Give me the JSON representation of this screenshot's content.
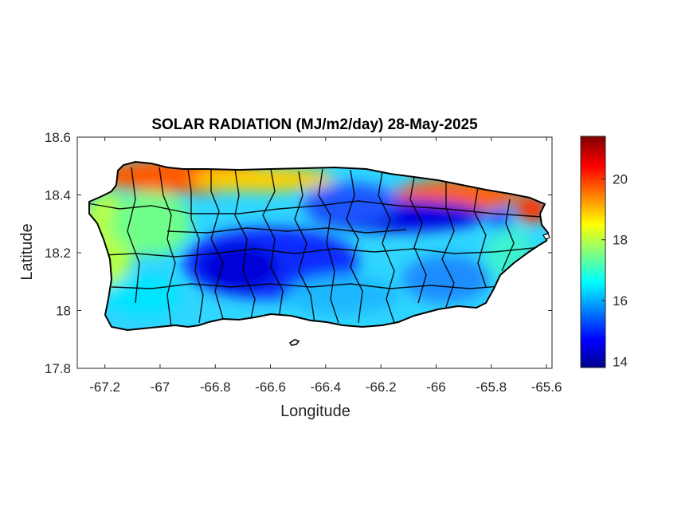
{
  "chart_data": {
    "type": "heatmap",
    "title": "SOLAR RADIATION (MJ/m2/day) 28-May-2025",
    "xlabel": "Longitude",
    "ylabel": "Latitude",
    "xlim": [
      -67.3,
      -65.58
    ],
    "ylim": [
      17.8,
      18.6
    ],
    "x_ticks": [
      -67.2,
      -67,
      -66.8,
      -66.6,
      -66.4,
      -66.2,
      -66,
      -65.8,
      -65.6
    ],
    "x_tick_labels": [
      "-67.2",
      "-67",
      "-66.8",
      "-66.6",
      "-66.4",
      "-66.2",
      "-66",
      "-65.8",
      "-65.6"
    ],
    "y_ticks": [
      17.8,
      18,
      18.2,
      18.4,
      18.6
    ],
    "y_tick_labels": [
      "17.8",
      "18",
      "18.2",
      "18.4",
      "18.6"
    ],
    "grid": false,
    "colormap": "jet",
    "colorbar": {
      "range": [
        13.8,
        21.4
      ],
      "ticks": [
        14,
        16,
        18,
        20
      ],
      "tick_labels": [
        "14",
        "16",
        "18",
        "20"
      ]
    },
    "regions": [
      {
        "area": "north coast west",
        "approx_value": 20.5
      },
      {
        "area": "northeast coast",
        "approx_value": 20.2
      },
      {
        "area": "central mountains",
        "approx_value": 14.5
      },
      {
        "area": "west coast",
        "approx_value": 17.8
      },
      {
        "area": "south coast",
        "approx_value": 16.3
      },
      {
        "area": "east coast",
        "approx_value": 17.0
      }
    ]
  }
}
